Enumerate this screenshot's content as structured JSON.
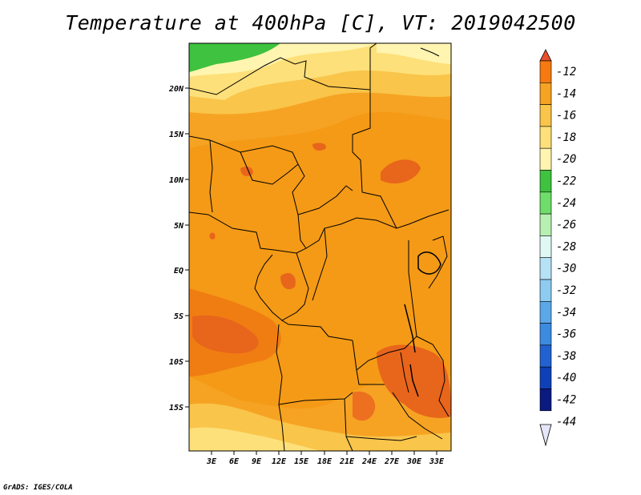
{
  "title": "Temperature at 400hPa [C], VT: 2019042500",
  "credit": "GrADS: IGES/COLA",
  "map": {
    "lat_labels": [
      "20N",
      "15N",
      "10N",
      "5N",
      "EQ",
      "5S",
      "10S",
      "15S"
    ],
    "lon_labels": [
      "3E",
      "6E",
      "9E",
      "12E",
      "15E",
      "18E",
      "21E",
      "24E",
      "27E",
      "30E",
      "33E"
    ]
  },
  "colorbar": {
    "labels": [
      "-12",
      "-14",
      "-16",
      "-18",
      "-20",
      "-22",
      "-24",
      "-26",
      "-28",
      "-30",
      "-32",
      "-34",
      "-36",
      "-38",
      "-40",
      "-42",
      "-44"
    ],
    "colors": [
      "#e8502a",
      "#f67a10",
      "#f6a323",
      "#f9c54a",
      "#fde07a",
      "#fff5b0",
      "#3ec23f",
      "#6fdd6a",
      "#b7f0b0",
      "#e0f8f4",
      "#b6e2f6",
      "#8ecbf0",
      "#5ba8e8",
      "#3b8be0",
      "#2262d0",
      "#0e40b8",
      "#0a1a80"
    ],
    "top_color": "#e8502a",
    "bottom_color": "#e6e6fa"
  }
}
